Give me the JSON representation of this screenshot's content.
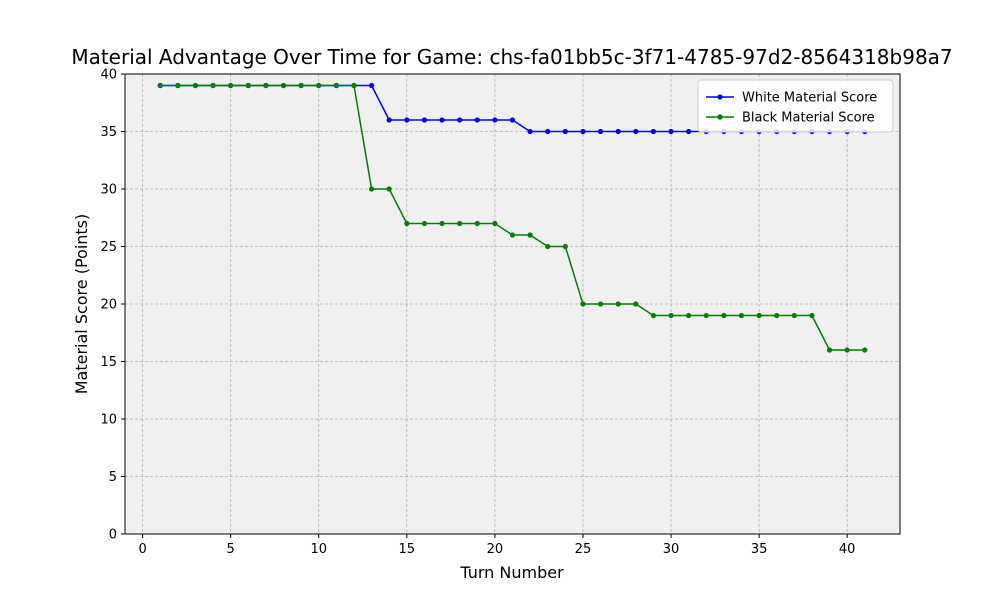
{
  "chart_data": {
    "type": "line",
    "title": "Material Advantage Over Time for Game: chs-fa01bb5c-3f71-4785-97d2-8564318b98a7",
    "xlabel": "Turn Number",
    "ylabel": "Material Score (Points)",
    "xlim": [
      -1,
      43
    ],
    "ylim": [
      0,
      40
    ],
    "xticks": [
      0,
      5,
      10,
      15,
      20,
      25,
      30,
      35,
      40
    ],
    "yticks": [
      0,
      5,
      10,
      15,
      20,
      25,
      30,
      35,
      40
    ],
    "grid": true,
    "legend_position": "top-right",
    "background": "#f0f0f0",
    "x": [
      1,
      2,
      3,
      4,
      5,
      6,
      7,
      8,
      9,
      10,
      11,
      12,
      13,
      14,
      15,
      16,
      17,
      18,
      19,
      20,
      21,
      22,
      23,
      24,
      25,
      26,
      27,
      28,
      29,
      30,
      31,
      32,
      33,
      34,
      35,
      36,
      37,
      38,
      39,
      40,
      41
    ],
    "series": [
      {
        "name": "White Material Score",
        "color": "#0000ff",
        "values": [
          39,
          39,
          39,
          39,
          39,
          39,
          39,
          39,
          39,
          39,
          39,
          39,
          39,
          36,
          36,
          36,
          36,
          36,
          36,
          36,
          36,
          35,
          35,
          35,
          35,
          35,
          35,
          35,
          35,
          35,
          35,
          35,
          35,
          35,
          35,
          35,
          35,
          35,
          35,
          35,
          35
        ]
      },
      {
        "name": "Black Material Score",
        "color": "#008000",
        "values": [
          39,
          39,
          39,
          39,
          39,
          39,
          39,
          39,
          39,
          39,
          39,
          39,
          30,
          30,
          27,
          27,
          27,
          27,
          27,
          27,
          26,
          26,
          25,
          25,
          20,
          20,
          20,
          20,
          19,
          19,
          19,
          19,
          19,
          19,
          19,
          19,
          19,
          19,
          16,
          16,
          16
        ]
      }
    ]
  }
}
